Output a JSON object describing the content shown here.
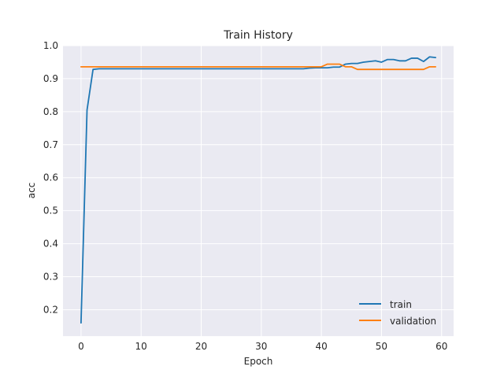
{
  "chart_data": {
    "type": "line",
    "title": "Train History",
    "xlabel": "Epoch",
    "ylabel": "acc",
    "xlim": [
      -3,
      62
    ],
    "ylim": [
      0.12,
      1.0
    ],
    "xticks": [
      0,
      10,
      20,
      30,
      40,
      50,
      60
    ],
    "yticks": [
      0.2,
      0.3,
      0.4,
      0.5,
      0.6,
      0.7,
      0.8,
      0.9,
      1.0
    ],
    "xtick_labels": [
      "0",
      "10",
      "20",
      "30",
      "40",
      "50",
      "60"
    ],
    "ytick_labels": [
      "0.2",
      "0.3",
      "0.4",
      "0.5",
      "0.6",
      "0.7",
      "0.8",
      "0.9",
      "1.0"
    ],
    "grid": true,
    "legend_position": "lower-right",
    "colors": {
      "background": "#eaeaf2",
      "grid": "#ffffff",
      "train": "#1f77b4",
      "validation": "#ff7f0e"
    },
    "series": [
      {
        "name": "train",
        "x": [
          0,
          1,
          2,
          3,
          4,
          5,
          6,
          7,
          8,
          9,
          10,
          11,
          12,
          13,
          14,
          15,
          16,
          17,
          18,
          19,
          20,
          21,
          22,
          23,
          24,
          25,
          26,
          27,
          28,
          29,
          30,
          31,
          32,
          33,
          34,
          35,
          36,
          37,
          38,
          39,
          40,
          41,
          42,
          43,
          44,
          45,
          46,
          47,
          48,
          49,
          50,
          51,
          52,
          53,
          54,
          55,
          56,
          57,
          58,
          59
        ],
        "y": [
          0.16,
          0.805,
          0.928,
          0.93,
          0.93,
          0.93,
          0.93,
          0.93,
          0.93,
          0.93,
          0.93,
          0.93,
          0.93,
          0.93,
          0.93,
          0.93,
          0.93,
          0.93,
          0.93,
          0.93,
          0.93,
          0.93,
          0.93,
          0.93,
          0.93,
          0.93,
          0.93,
          0.93,
          0.93,
          0.93,
          0.93,
          0.93,
          0.93,
          0.93,
          0.93,
          0.93,
          0.93,
          0.93,
          0.932,
          0.933,
          0.933,
          0.933,
          0.935,
          0.935,
          0.944,
          0.946,
          0.946,
          0.95,
          0.952,
          0.954,
          0.95,
          0.958,
          0.958,
          0.954,
          0.954,
          0.962,
          0.962,
          0.952,
          0.966,
          0.964
        ]
      },
      {
        "name": "validation",
        "x": [
          0,
          1,
          2,
          3,
          4,
          5,
          6,
          7,
          8,
          9,
          10,
          11,
          12,
          13,
          14,
          15,
          16,
          17,
          18,
          19,
          20,
          21,
          22,
          23,
          24,
          25,
          26,
          27,
          28,
          29,
          30,
          31,
          32,
          33,
          34,
          35,
          36,
          37,
          38,
          39,
          40,
          41,
          42,
          43,
          44,
          45,
          46,
          47,
          48,
          49,
          50,
          51,
          52,
          53,
          54,
          55,
          56,
          57,
          58,
          59
        ],
        "y": [
          0.936,
          0.936,
          0.936,
          0.936,
          0.936,
          0.936,
          0.936,
          0.936,
          0.936,
          0.936,
          0.936,
          0.936,
          0.936,
          0.936,
          0.936,
          0.936,
          0.936,
          0.936,
          0.936,
          0.936,
          0.936,
          0.936,
          0.936,
          0.936,
          0.936,
          0.936,
          0.936,
          0.936,
          0.936,
          0.936,
          0.936,
          0.936,
          0.936,
          0.936,
          0.936,
          0.936,
          0.936,
          0.936,
          0.936,
          0.936,
          0.936,
          0.944,
          0.944,
          0.944,
          0.936,
          0.936,
          0.928,
          0.928,
          0.928,
          0.928,
          0.928,
          0.928,
          0.928,
          0.928,
          0.928,
          0.928,
          0.928,
          0.928,
          0.936,
          0.936
        ]
      }
    ]
  }
}
